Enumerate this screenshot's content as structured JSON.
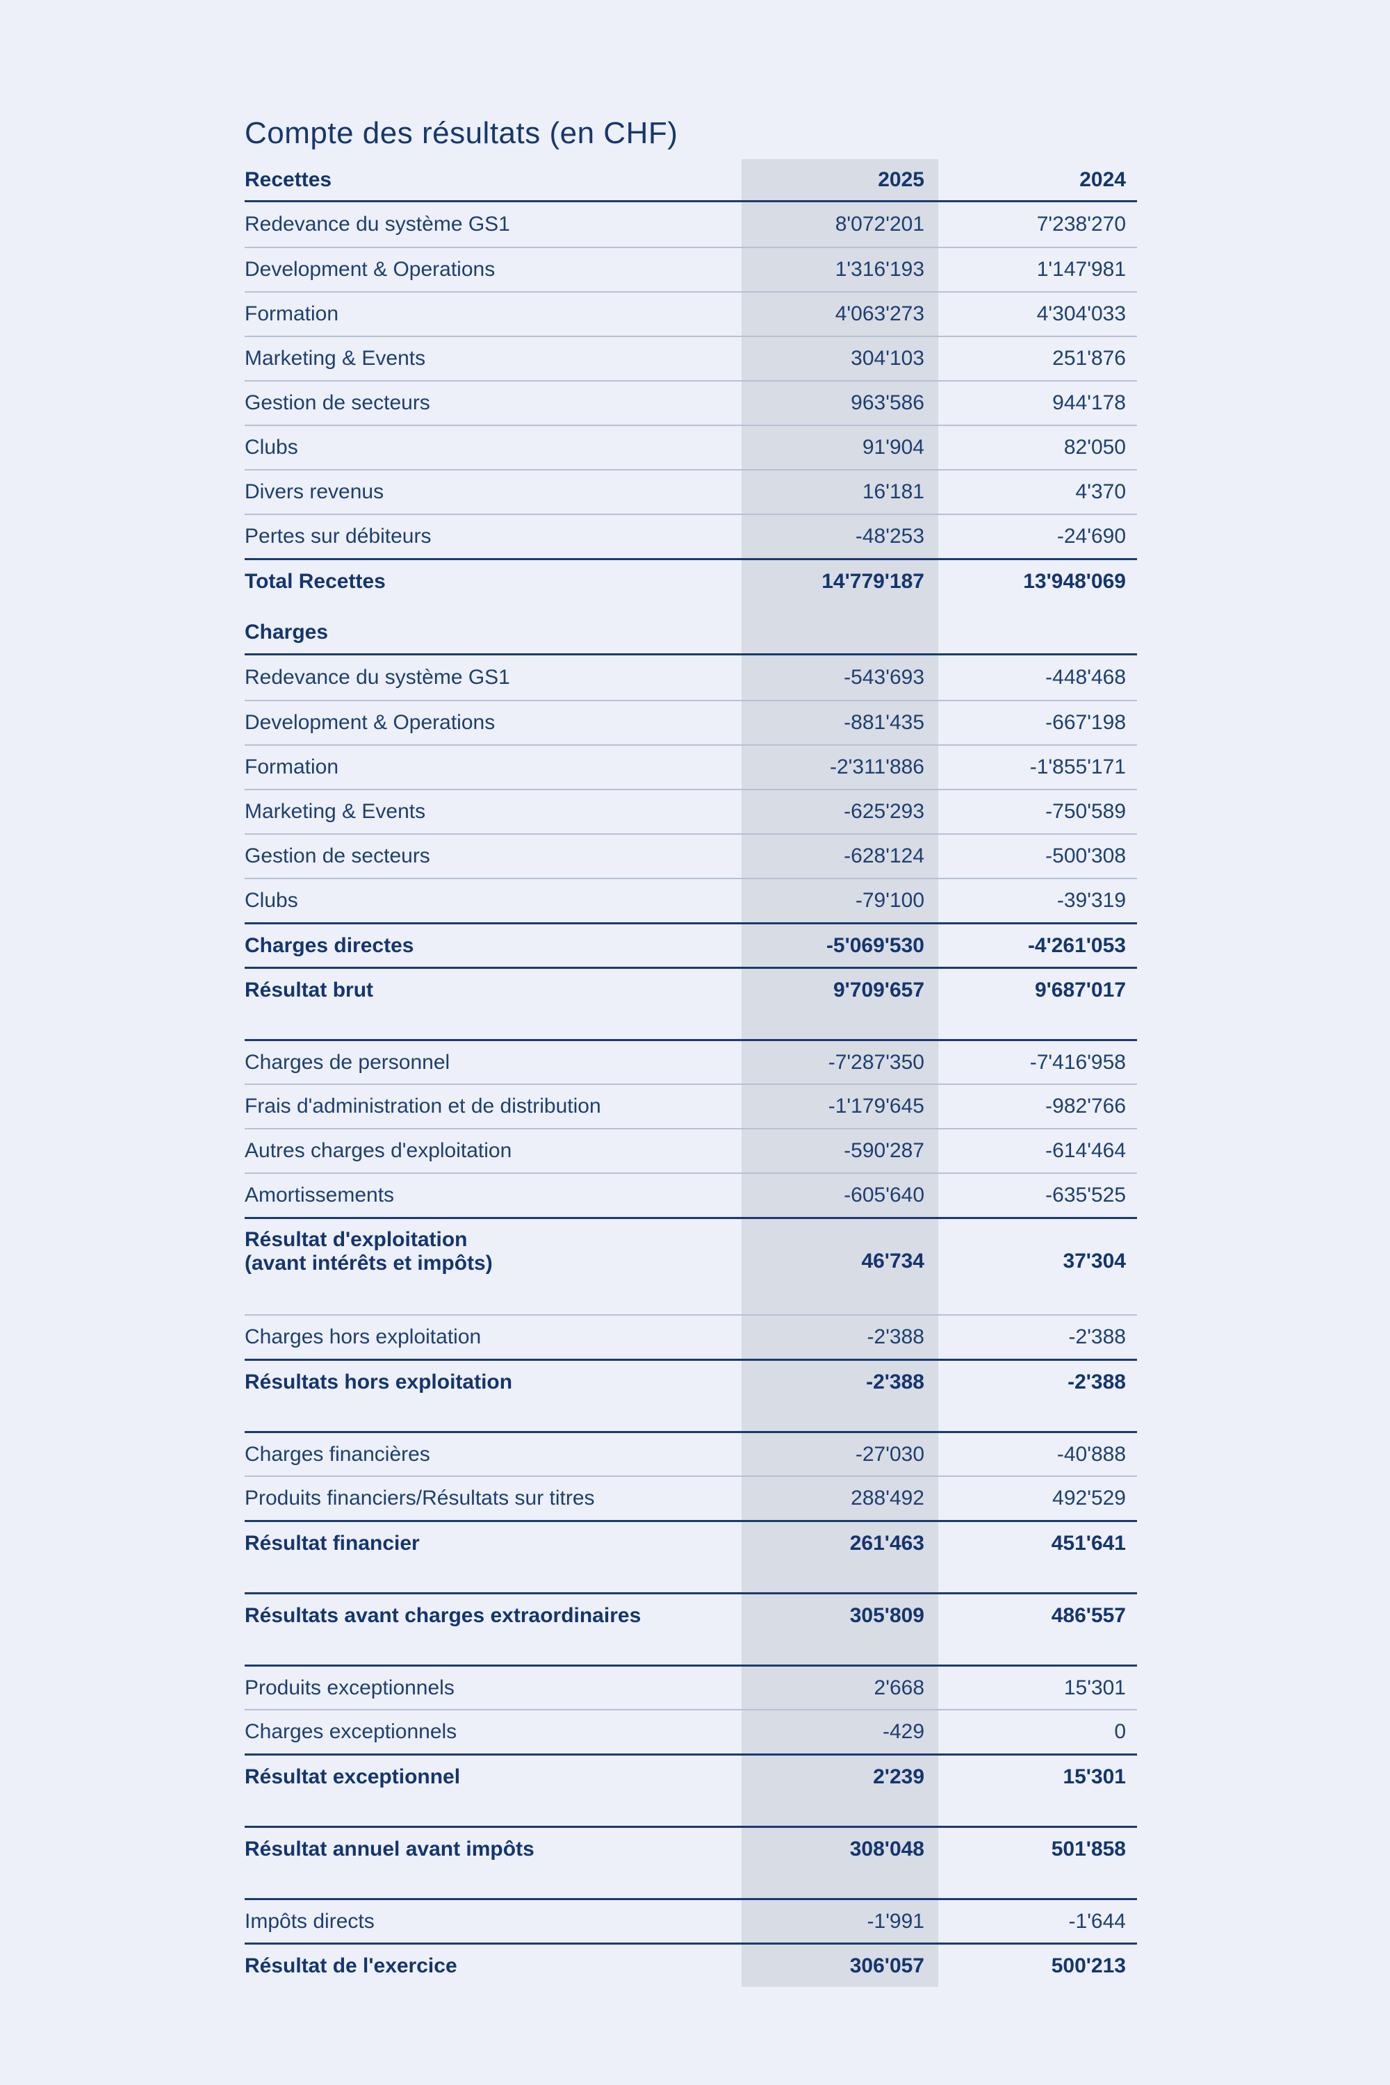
{
  "title": "Compte des résultats (en CHF)",
  "colors": {
    "background": "#EDF0F9",
    "highlight_band": "#D8DCE5",
    "navy": "#1C3A6E",
    "regular_text": "#1E3F6F",
    "bold_text": "#14356E",
    "thin_line": "#B7C1D3"
  },
  "table": {
    "rows": [
      {
        "type": "header",
        "label": "Recettes",
        "v2025": "2025",
        "v2024": "2024"
      },
      {
        "type": "row",
        "label": "Redevance du système GS1",
        "v2025": "8'072'201",
        "v2024": "7'238'270",
        "line": "none"
      },
      {
        "type": "row",
        "label": "Development & Operations",
        "v2025": "1'316'193",
        "v2024": "1'147'981",
        "line": "thin"
      },
      {
        "type": "row",
        "label": "Formation",
        "v2025": "4'063'273",
        "v2024": "4'304'033",
        "line": "thin"
      },
      {
        "type": "row",
        "label": "Marketing & Events",
        "v2025": "304'103",
        "v2024": "251'876",
        "line": "thin"
      },
      {
        "type": "row",
        "label": "Gestion de secteurs",
        "v2025": "963'586",
        "v2024": "944'178",
        "line": "thin"
      },
      {
        "type": "row",
        "label": "Clubs",
        "v2025": "91'904",
        "v2024": "82'050",
        "line": "thin"
      },
      {
        "type": "row",
        "label": "Divers revenus",
        "v2025": "16'181",
        "v2024": "4'370",
        "line": "thin"
      },
      {
        "type": "row",
        "label": "Pertes sur débiteurs",
        "v2025": "-48'253",
        "v2024": "-24'690",
        "line": "thin"
      },
      {
        "type": "total",
        "label": "Total Recettes",
        "v2025": "14'779'187",
        "v2024": "13'948'069",
        "line": "thick"
      },
      {
        "type": "gap",
        "h": 12
      },
      {
        "type": "subheader",
        "label": "Charges"
      },
      {
        "type": "row",
        "label": "Redevance du système GS1",
        "v2025": "-543'693",
        "v2024": "-448'468",
        "line": "none"
      },
      {
        "type": "row",
        "label": "Development & Operations",
        "v2025": "-881'435",
        "v2024": "-667'198",
        "line": "thin"
      },
      {
        "type": "row",
        "label": "Formation",
        "v2025": "-2'311'886",
        "v2024": "-1'855'171",
        "line": "thin"
      },
      {
        "type": "row",
        "label": "Marketing & Events",
        "v2025": "-625'293",
        "v2024": "-750'589",
        "line": "thin"
      },
      {
        "type": "row",
        "label": "Gestion de secteurs",
        "v2025": "-628'124",
        "v2024": "-500'308",
        "line": "thin"
      },
      {
        "type": "row",
        "label": "Clubs",
        "v2025": "-79'100",
        "v2024": "-39'319",
        "line": "thin"
      },
      {
        "type": "total",
        "label": "Charges directes",
        "v2025": "-5'069'530",
        "v2024": "-4'261'053",
        "line": "thick"
      },
      {
        "type": "total",
        "label": "Résultat brut",
        "v2025": "9'709'657",
        "v2024": "9'687'017",
        "line": "thick"
      },
      {
        "type": "gap",
        "h": 40
      },
      {
        "type": "row",
        "label": "Charges de personnel",
        "v2025": "-7'287'350",
        "v2024": "-7'416'958",
        "line": "thick"
      },
      {
        "type": "row",
        "label": "Frais d'administration et de distribution",
        "v2025": "-1'179'645",
        "v2024": "-982'766",
        "line": "thin"
      },
      {
        "type": "row",
        "label": "Autres charges d'exploitation",
        "v2025": "-590'287",
        "v2024": "-614'464",
        "line": "thin"
      },
      {
        "type": "row",
        "label": "Amortissements",
        "v2025": "-605'640",
        "v2024": "-635'525",
        "line": "thin"
      },
      {
        "type": "total2",
        "label": "Résultat d'exploitation",
        "label2": "(avant intérêts et impôts)",
        "v2025": "46'734",
        "v2024": "37'304",
        "line": "thick"
      },
      {
        "type": "gap",
        "h": 40
      },
      {
        "type": "row",
        "label": "Charges hors exploitation",
        "v2025": "-2'388",
        "v2024": "-2'388",
        "line": "thin"
      },
      {
        "type": "total",
        "label": "Résultats hors exploitation",
        "v2025": "-2'388",
        "v2024": "-2'388",
        "line": "thick"
      },
      {
        "type": "gap",
        "h": 40
      },
      {
        "type": "row",
        "label": "Charges financières",
        "v2025": "-27'030",
        "v2024": "-40'888",
        "line": "thick"
      },
      {
        "type": "row",
        "label": "Produits financiers/Résultats sur titres",
        "v2025": "288'492",
        "v2024": "492'529",
        "line": "thin"
      },
      {
        "type": "total",
        "label": "Résultat financier",
        "v2025": "261'463",
        "v2024": "451'641",
        "line": "thick"
      },
      {
        "type": "gap",
        "h": 40
      },
      {
        "type": "total",
        "label": "Résultats avant charges extraordinaires",
        "v2025": "305'809",
        "v2024": "486'557",
        "line": "thick"
      },
      {
        "type": "gap",
        "h": 40
      },
      {
        "type": "row",
        "label": "Produits exceptionnels",
        "v2025": "2'668",
        "v2024": "15'301",
        "line": "thick"
      },
      {
        "type": "row",
        "label": "Charges exceptionnels",
        "v2025": "-429",
        "v2024": "0",
        "line": "thin"
      },
      {
        "type": "total",
        "label": "Résultat exceptionnel",
        "v2025": "2'239",
        "v2024": "15'301",
        "line": "thick"
      },
      {
        "type": "gap",
        "h": 40
      },
      {
        "type": "total",
        "label": "Résultat annuel avant impôts",
        "v2025": "308'048",
        "v2024": "501'858",
        "line": "thick"
      },
      {
        "type": "gap",
        "h": 40
      },
      {
        "type": "row",
        "label": "Impôts directs",
        "v2025": "-1'991",
        "v2024": "-1'644",
        "line": "thick"
      },
      {
        "type": "total",
        "label": "Résultat de l'exercice",
        "v2025": "306'057",
        "v2024": "500'213",
        "line": "thick"
      }
    ]
  }
}
